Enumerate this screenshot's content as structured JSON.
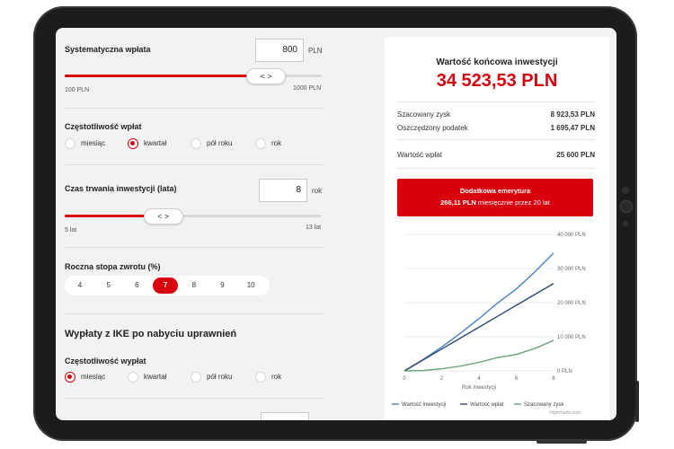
{
  "inputs": {
    "payment_label": "Systematyczna wpłata",
    "payment_value": "800",
    "payment_unit": "PLN",
    "payment_min": "100 PLN",
    "payment_max": "1000 PLN",
    "payment_slider_fraction": 0.78,
    "slider_thumb_glyph": "< >",
    "frequency_label": "Częstotliwość wpłat",
    "frequency_options": [
      "miesiąc",
      "kwartał",
      "pół roku",
      "rok"
    ],
    "frequency_selected": "kwartał",
    "duration_label": "Czas trwania inwestycji (lata)",
    "duration_value": "8",
    "duration_unit": "rok",
    "duration_min": "5 lat",
    "duration_max": "13 lat",
    "duration_slider_fraction": 0.38,
    "rate_label": "Roczna stopa zwrotu (%)",
    "rate_options": [
      "4",
      "5",
      "6",
      "7",
      "8",
      "9",
      "10"
    ],
    "rate_selected": "7",
    "ike_title": "Wypłaty z IKE po nabyciu uprawnień",
    "ike_frequency_label": "Częstotliwość wypłat",
    "ike_frequency_options": [
      "miesiąc",
      "kwartał",
      "pół roku",
      "rok"
    ],
    "ike_frequency_selected": "miesiąc"
  },
  "result": {
    "title": "Wartość końcowa inwestycji",
    "value": "34 523,53 PLN",
    "rows": [
      {
        "label": "Szacowany zysk",
        "value": "8 923,53 PLN"
      },
      {
        "label": "Oszczędzony podatek",
        "value": "1 695,47 PLN"
      },
      {
        "label": "Wartość wpłat",
        "value": "25 600 PLN"
      }
    ],
    "banner_title": "Dodatkowa emerytura",
    "banner_amount": "266,11 PLN",
    "banner_text": "miesięcznie przez 20 lat"
  },
  "colors": {
    "accent": "#d9000d",
    "series_value": "#4a7fc1",
    "series_payments": "#2c4a78",
    "series_profit": "#6aa37a"
  },
  "chart_data": {
    "type": "line",
    "x": [
      0,
      1,
      2,
      3,
      4,
      5,
      6,
      7,
      8
    ],
    "xlabel": "Rok inwestycji",
    "x_ticks": [
      "0",
      "2",
      "4",
      "6",
      "8"
    ],
    "ylim": [
      0,
      40000
    ],
    "y_ticks": [
      "0 PLN",
      "10 000 PLN",
      "20 000 PLN",
      "30 000 PLN",
      "40 000 PLN"
    ],
    "series": [
      {
        "name": "Wartość inwestycji",
        "values": [
          0,
          3300,
          7000,
          11000,
          15300,
          19900,
          24000,
          29000,
          34500
        ]
      },
      {
        "name": "Wartość wpłat",
        "values": [
          0,
          3200,
          6400,
          9600,
          12800,
          16000,
          19200,
          22400,
          25600
        ]
      },
      {
        "name": "Szacowany zysk",
        "values": [
          0,
          100,
          600,
          1400,
          2500,
          3900,
          4800,
          6600,
          8900
        ]
      }
    ],
    "legend_position": "bottom",
    "credit": "Highcharts.com"
  }
}
